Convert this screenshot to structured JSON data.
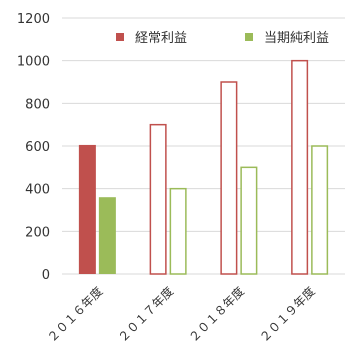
{
  "chart_data": {
    "type": "bar",
    "categories": [
      "２０１６年度",
      "２０１７年度",
      "２０１８年度",
      "２０１９年度"
    ],
    "series": [
      {
        "name": "経常利益",
        "values": [
          605,
          700,
          900,
          1000
        ],
        "color": "#c0504d"
      },
      {
        "name": "当期純利益",
        "values": [
          360,
          400,
          500,
          600
        ],
        "color": "#9bbb59"
      }
    ],
    "filled": [
      true,
      false,
      false,
      false
    ],
    "yticks": [
      0,
      200,
      400,
      600,
      800,
      1000,
      1200
    ],
    "ylim": [
      0,
      1200
    ],
    "grid": true,
    "legend_position": "top-right",
    "gridline_color": "#d9d9d9"
  }
}
